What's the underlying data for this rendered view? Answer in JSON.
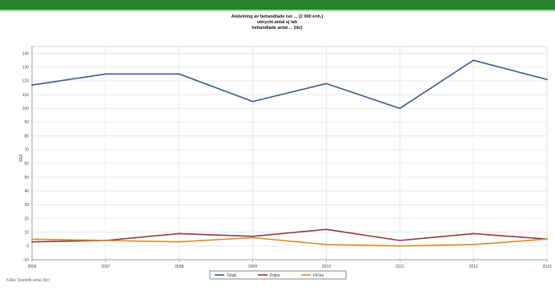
{
  "chart_data": {
    "type": "line",
    "title_lines": [
      "Andelning av behandlade ner ... (2 000 enh.)",
      "uttryckt antal ej lab",
      "behandlade antal ... (tkr)"
    ],
    "ylabel": "SEK",
    "x": [
      "2006",
      "2007",
      "2008",
      "2009",
      "2010",
      "2011",
      "2012",
      "2013"
    ],
    "ylim": [
      -10,
      145
    ],
    "yticks": [
      -10,
      0,
      10,
      20,
      30,
      40,
      50,
      60,
      70,
      80,
      90,
      100,
      110,
      120,
      130,
      140
    ],
    "grid": true,
    "legend_position": "bottom",
    "series": [
      {
        "name": "Totalt",
        "color": "#3b5b86",
        "values": [
          117,
          125,
          125,
          105,
          118,
          100,
          135,
          121
        ]
      },
      {
        "name": "Pojke",
        "color": "#8b3a3a",
        "values": [
          3,
          4,
          9,
          7,
          12,
          4,
          9,
          5
        ]
      },
      {
        "name": "Flicka",
        "color": "#d8892e",
        "values": [
          5,
          4,
          3,
          6,
          1,
          0,
          1,
          5
        ]
      }
    ],
    "footnote": "Källa: Statistik antal (tkr)"
  }
}
